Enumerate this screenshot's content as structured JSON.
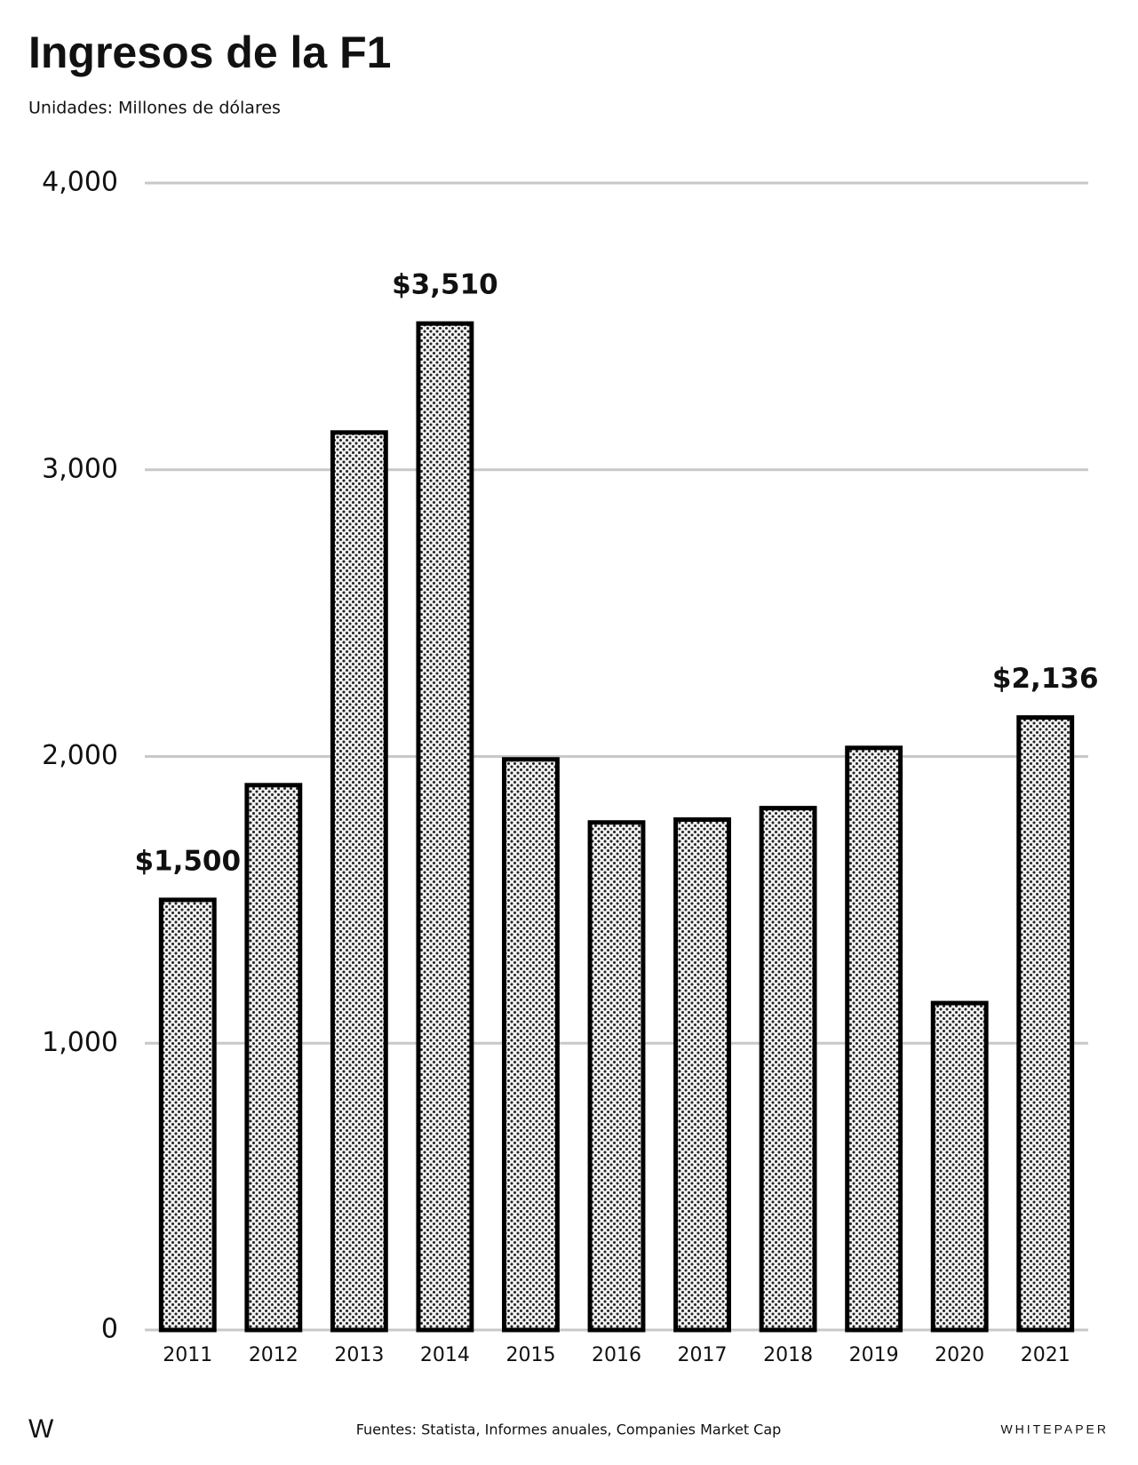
{
  "chart_data": {
    "type": "bar",
    "title": "Ingresos de la F1",
    "subtitle": "Unidades: Millones de dólares",
    "categories": [
      "2011",
      "2012",
      "2013",
      "2014",
      "2015",
      "2016",
      "2017",
      "2018",
      "2019",
      "2020",
      "2021"
    ],
    "values": [
      1500,
      1900,
      3130,
      3510,
      1990,
      1770,
      1780,
      1820,
      2030,
      1140,
      2136
    ],
    "value_labels": [
      "$1,500",
      null,
      null,
      "$3,510",
      null,
      null,
      null,
      null,
      null,
      null,
      "$2,136"
    ],
    "color": "#000000",
    "ylim": [
      0,
      4000
    ],
    "yticks": [
      0,
      {
        "value": 1000,
        "label": "1,000"
      },
      {
        "value": 2000,
        "label": "2,000"
      },
      {
        "value": 3000,
        "label": "3,000"
      },
      {
        "value": 4000,
        "label": "4,000"
      }
    ],
    "grid": true,
    "logo": "W",
    "source": "Fuentes: Statista, Informes anuales, Companies Market Cap",
    "brand": "WHITEPAPER"
  }
}
